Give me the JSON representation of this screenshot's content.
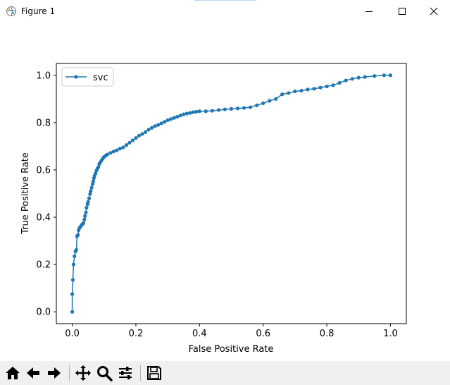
{
  "window": {
    "title": "Figure 1",
    "controls": [
      "minimize-icon",
      "maximize-icon",
      "close-icon"
    ]
  },
  "toolbar": {
    "buttons": [
      "home-icon",
      "back-arrow-icon",
      "forward-arrow-icon",
      "pan-icon",
      "zoom-icon",
      "configure-subplots-icon",
      "save-icon"
    ]
  },
  "chart_data": {
    "type": "line",
    "title": "",
    "xlabel": "False Positive Rate",
    "ylabel": "True Positive Rate",
    "xlim": [
      -0.05,
      1.05
    ],
    "ylim": [
      -0.05,
      1.05
    ],
    "xticks": [
      "0.0",
      "0.2",
      "0.4",
      "0.6",
      "0.8",
      "1.0"
    ],
    "yticks": [
      "0.0",
      "0.2",
      "0.4",
      "0.6",
      "0.8",
      "1.0"
    ],
    "grid": false,
    "legend": {
      "position": "upper-left",
      "entries": [
        "svc"
      ]
    },
    "color": "#1f77b4",
    "series": [
      {
        "name": "svc",
        "marker": "o",
        "points": [
          [
            0.0,
            0.0
          ],
          [
            0.0,
            0.075
          ],
          [
            0.002,
            0.135
          ],
          [
            0.004,
            0.2
          ],
          [
            0.007,
            0.235
          ],
          [
            0.01,
            0.255
          ],
          [
            0.013,
            0.262
          ],
          [
            0.015,
            0.32
          ],
          [
            0.018,
            0.325
          ],
          [
            0.02,
            0.345
          ],
          [
            0.023,
            0.355
          ],
          [
            0.027,
            0.362
          ],
          [
            0.03,
            0.368
          ],
          [
            0.033,
            0.372
          ],
          [
            0.035,
            0.375
          ],
          [
            0.038,
            0.39
          ],
          [
            0.04,
            0.405
          ],
          [
            0.043,
            0.42
          ],
          [
            0.045,
            0.44
          ],
          [
            0.048,
            0.455
          ],
          [
            0.05,
            0.465
          ],
          [
            0.053,
            0.48
          ],
          [
            0.056,
            0.498
          ],
          [
            0.058,
            0.51
          ],
          [
            0.061,
            0.525
          ],
          [
            0.064,
            0.54
          ],
          [
            0.066,
            0.552
          ],
          [
            0.068,
            0.565
          ],
          [
            0.07,
            0.575
          ],
          [
            0.073,
            0.585
          ],
          [
            0.076,
            0.597
          ],
          [
            0.079,
            0.605
          ],
          [
            0.082,
            0.612
          ],
          [
            0.085,
            0.625
          ],
          [
            0.088,
            0.632
          ],
          [
            0.092,
            0.64
          ],
          [
            0.096,
            0.648
          ],
          [
            0.1,
            0.655
          ],
          [
            0.105,
            0.66
          ],
          [
            0.11,
            0.665
          ],
          [
            0.12,
            0.672
          ],
          [
            0.13,
            0.678
          ],
          [
            0.14,
            0.683
          ],
          [
            0.15,
            0.69
          ],
          [
            0.16,
            0.695
          ],
          [
            0.17,
            0.705
          ],
          [
            0.18,
            0.715
          ],
          [
            0.19,
            0.725
          ],
          [
            0.2,
            0.735
          ],
          [
            0.21,
            0.745
          ],
          [
            0.22,
            0.752
          ],
          [
            0.23,
            0.76
          ],
          [
            0.24,
            0.77
          ],
          [
            0.25,
            0.778
          ],
          [
            0.26,
            0.785
          ],
          [
            0.27,
            0.79
          ],
          [
            0.28,
            0.797
          ],
          [
            0.29,
            0.803
          ],
          [
            0.3,
            0.81
          ],
          [
            0.31,
            0.815
          ],
          [
            0.32,
            0.82
          ],
          [
            0.33,
            0.825
          ],
          [
            0.34,
            0.83
          ],
          [
            0.35,
            0.835
          ],
          [
            0.36,
            0.838
          ],
          [
            0.37,
            0.841
          ],
          [
            0.38,
            0.844
          ],
          [
            0.39,
            0.846
          ],
          [
            0.4,
            0.848
          ],
          [
            0.42,
            0.848
          ],
          [
            0.44,
            0.85
          ],
          [
            0.46,
            0.853
          ],
          [
            0.48,
            0.856
          ],
          [
            0.5,
            0.858
          ],
          [
            0.52,
            0.86
          ],
          [
            0.54,
            0.862
          ],
          [
            0.56,
            0.865
          ],
          [
            0.58,
            0.873
          ],
          [
            0.6,
            0.882
          ],
          [
            0.62,
            0.892
          ],
          [
            0.64,
            0.9
          ],
          [
            0.66,
            0.92
          ],
          [
            0.68,
            0.925
          ],
          [
            0.7,
            0.932
          ],
          [
            0.72,
            0.935
          ],
          [
            0.74,
            0.94
          ],
          [
            0.76,
            0.943
          ],
          [
            0.78,
            0.948
          ],
          [
            0.8,
            0.953
          ],
          [
            0.82,
            0.958
          ],
          [
            0.84,
            0.968
          ],
          [
            0.86,
            0.978
          ],
          [
            0.88,
            0.985
          ],
          [
            0.9,
            0.99
          ],
          [
            0.92,
            0.993
          ],
          [
            0.95,
            0.997
          ],
          [
            0.98,
            1.0
          ],
          [
            1.0,
            1.0
          ]
        ]
      }
    ]
  }
}
